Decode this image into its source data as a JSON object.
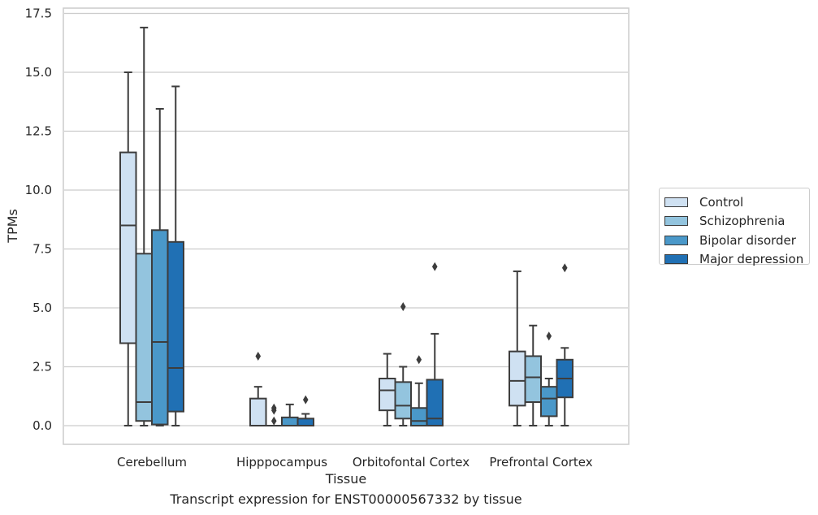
{
  "chart_data": {
    "type": "boxplot",
    "title": "",
    "xlabel": "Tissue",
    "ylabel": "TPMs",
    "caption": "Transcript expression for ENST00000567332 by tissue",
    "ylim": [
      -0.8,
      17.7
    ],
    "yticks": [
      "0.0",
      "2.5",
      "5.0",
      "7.5",
      "10.0",
      "12.5",
      "15.0",
      "17.5"
    ],
    "grid": "horizontal",
    "legend_position": "right",
    "categories": [
      "Cerebellum",
      "Hipppocampus",
      "Orbitofontal Cortex",
      "Prefrontal Cortex"
    ],
    "series": [
      {
        "name": "Control",
        "color": "#cfe1f2",
        "boxes": [
          {
            "whislo": 0.0,
            "q1": 3.5,
            "med": 8.5,
            "q3": 11.6,
            "whishi": 15.0,
            "fliers": []
          },
          {
            "whislo": 0.0,
            "q1": 0.0,
            "med": 0.0,
            "q3": 1.15,
            "whishi": 1.65,
            "fliers": [
              2.95
            ]
          },
          {
            "whislo": 0.0,
            "q1": 0.65,
            "med": 1.5,
            "q3": 2.0,
            "whishi": 3.05,
            "fliers": []
          },
          {
            "whislo": 0.0,
            "q1": 0.85,
            "med": 1.9,
            "q3": 3.15,
            "whishi": 6.55,
            "fliers": []
          }
        ]
      },
      {
        "name": "Schizophrenia",
        "color": "#93c4de",
        "boxes": [
          {
            "whislo": 0.0,
            "q1": 0.2,
            "med": 1.0,
            "q3": 7.3,
            "whishi": 16.9,
            "fliers": []
          },
          {
            "whislo": 0.0,
            "q1": 0.0,
            "med": 0.0,
            "q3": 0.0,
            "whishi": 0.0,
            "fliers": [
              0.2,
              0.65,
              0.75
            ]
          },
          {
            "whislo": 0.0,
            "q1": 0.3,
            "med": 0.85,
            "q3": 1.85,
            "whishi": 2.5,
            "fliers": [
              5.05
            ]
          },
          {
            "whislo": 0.0,
            "q1": 1.0,
            "med": 2.05,
            "q3": 2.95,
            "whishi": 4.25,
            "fliers": []
          }
        ]
      },
      {
        "name": "Bipolar disorder",
        "color": "#4a98c9",
        "boxes": [
          {
            "whislo": 0.0,
            "q1": 0.05,
            "med": 3.55,
            "q3": 8.3,
            "whishi": 13.45,
            "fliers": []
          },
          {
            "whislo": 0.0,
            "q1": 0.0,
            "med": 0.0,
            "q3": 0.35,
            "whishi": 0.9,
            "fliers": []
          },
          {
            "whislo": 0.0,
            "q1": 0.0,
            "med": 0.2,
            "q3": 0.75,
            "whishi": 1.8,
            "fliers": [
              2.8
            ]
          },
          {
            "whislo": 0.0,
            "q1": 0.4,
            "med": 1.15,
            "q3": 1.65,
            "whishi": 2.0,
            "fliers": [
              3.8
            ]
          }
        ]
      },
      {
        "name": "Major depression",
        "color": "#2070b4",
        "boxes": [
          {
            "whislo": 0.0,
            "q1": 0.6,
            "med": 2.45,
            "q3": 7.8,
            "whishi": 14.4,
            "fliers": []
          },
          {
            "whislo": 0.0,
            "q1": 0.0,
            "med": 0.0,
            "q3": 0.3,
            "whishi": 0.5,
            "fliers": [
              1.1
            ]
          },
          {
            "whislo": 0.0,
            "q1": 0.0,
            "med": 0.3,
            "q3": 1.95,
            "whishi": 3.9,
            "fliers": [
              6.75
            ]
          },
          {
            "whislo": 0.0,
            "q1": 1.2,
            "med": 2.0,
            "q3": 2.8,
            "whishi": 3.3,
            "fliers": [
              6.7
            ]
          }
        ]
      }
    ]
  }
}
